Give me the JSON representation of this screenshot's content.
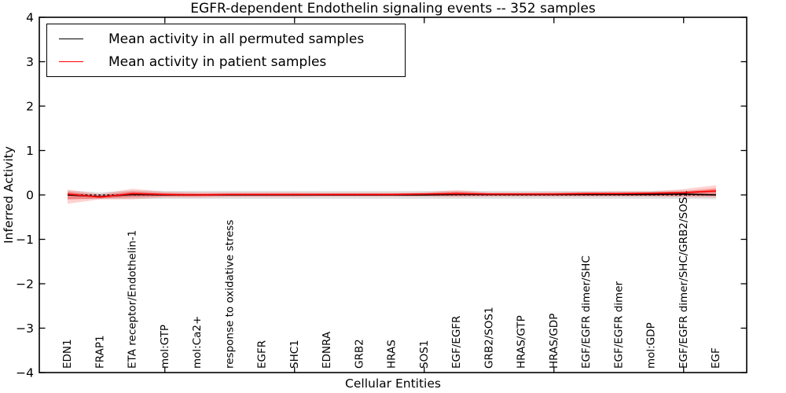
{
  "chart_data": {
    "type": "line",
    "title": "EGFR-dependent Endothelin signaling events -- 352 samples",
    "xlabel": "Cellular Entities",
    "ylabel": "Inferred Activity",
    "ylim": [
      -4,
      4
    ],
    "grid": false,
    "legend_position": "upper left",
    "background_color": "#ffffff",
    "axis_color": "#000000",
    "categories": [
      "EDN1",
      "FRAP1",
      "ETA receptor/Endothelin-1",
      "mol:GTP",
      "mol:Ca2+",
      "response to oxidative stress",
      "EGFR",
      "SHC1",
      "EDNRA",
      "GRB2",
      "HRAS",
      "SOS1",
      "EGF/EGFR",
      "GRB2/SOS1",
      "HRAS/GTP",
      "HRAS/GDP",
      "EGF/EGFR dimer/SHC",
      "EGF/EGFR dimer",
      "mol:GDP",
      "EGF/EGFR dimer/SHC/GRB2/SOS1",
      "EGF"
    ],
    "yticks": {
      "values": [
        4,
        3,
        2,
        1,
        0,
        -1,
        -2,
        -3,
        -4
      ],
      "labels": [
        "4",
        "3",
        "2",
        "1",
        "0",
        "−1",
        "−2",
        "−3",
        "−4"
      ]
    },
    "xtick_positions": [
      4,
      8,
      12,
      16,
      20
    ],
    "zero_line": {
      "value": 0,
      "style": "dashed",
      "color": "#000000"
    },
    "legend": [
      {
        "label": "Mean activity in all permuted samples",
        "color": "#000000"
      },
      {
        "label": "Mean activity in patient samples",
        "color": "#ff0000"
      }
    ],
    "series": [
      {
        "name": "permuted-mean",
        "label": "Mean activity in all permuted samples",
        "color": "#000000",
        "values": [
          0.0,
          -0.04,
          0.01,
          0.0,
          0.0,
          0.0,
          0.0,
          0.0,
          0.0,
          0.0,
          0.0,
          0.0,
          0.01,
          0.01,
          0.01,
          0.01,
          0.01,
          0.01,
          0.01,
          0.02,
          0.0
        ]
      },
      {
        "name": "patient-mean",
        "label": "Mean activity in patient samples",
        "color": "#ff0000",
        "values": [
          0.02,
          -0.05,
          0.03,
          0.01,
          0.0,
          0.01,
          0.01,
          0.01,
          0.01,
          0.01,
          0.01,
          0.02,
          0.03,
          0.02,
          0.02,
          0.02,
          0.03,
          0.03,
          0.04,
          0.05,
          0.09
        ]
      }
    ],
    "bands": [
      {
        "name": "permuted-spread",
        "color": "#000000",
        "opacity": 0.11,
        "upper": [
          0.1,
          0.06,
          0.1,
          0.09,
          0.09,
          0.09,
          0.09,
          0.09,
          0.09,
          0.09,
          0.09,
          0.09,
          0.09,
          0.09,
          0.09,
          0.09,
          0.09,
          0.09,
          0.09,
          0.1,
          0.1
        ],
        "lower": [
          -0.1,
          -0.09,
          -0.09,
          -0.09,
          -0.09,
          -0.09,
          -0.09,
          -0.09,
          -0.09,
          -0.09,
          -0.09,
          -0.09,
          -0.09,
          -0.09,
          -0.09,
          -0.09,
          -0.09,
          -0.09,
          -0.09,
          -0.09,
          -0.1
        ]
      },
      {
        "name": "patient-spread-outer",
        "color": "#ff0000",
        "opacity": 0.18,
        "upper": [
          0.12,
          0.02,
          0.14,
          0.07,
          0.06,
          0.06,
          0.06,
          0.06,
          0.05,
          0.05,
          0.05,
          0.06,
          0.11,
          0.06,
          0.06,
          0.07,
          0.07,
          0.08,
          0.08,
          0.13,
          0.22
        ],
        "lower": [
          -0.2,
          -0.1,
          -0.1,
          -0.06,
          -0.06,
          -0.05,
          -0.05,
          -0.05,
          -0.04,
          -0.04,
          -0.04,
          -0.04,
          -0.05,
          -0.04,
          -0.04,
          -0.04,
          -0.04,
          -0.04,
          -0.04,
          -0.05,
          -0.06
        ]
      },
      {
        "name": "patient-spread-inner",
        "color": "#ff0000",
        "opacity": 0.3,
        "upper": [
          0.07,
          -0.01,
          0.08,
          0.04,
          0.03,
          0.03,
          0.03,
          0.03,
          0.03,
          0.03,
          0.03,
          0.04,
          0.07,
          0.04,
          0.04,
          0.04,
          0.05,
          0.05,
          0.06,
          0.08,
          0.15
        ],
        "lower": [
          -0.1,
          -0.08,
          -0.05,
          -0.03,
          -0.03,
          -0.02,
          -0.02,
          -0.02,
          -0.02,
          -0.02,
          -0.02,
          -0.02,
          -0.02,
          -0.02,
          -0.02,
          -0.02,
          -0.02,
          -0.02,
          -0.02,
          -0.02,
          -0.02
        ]
      }
    ]
  }
}
